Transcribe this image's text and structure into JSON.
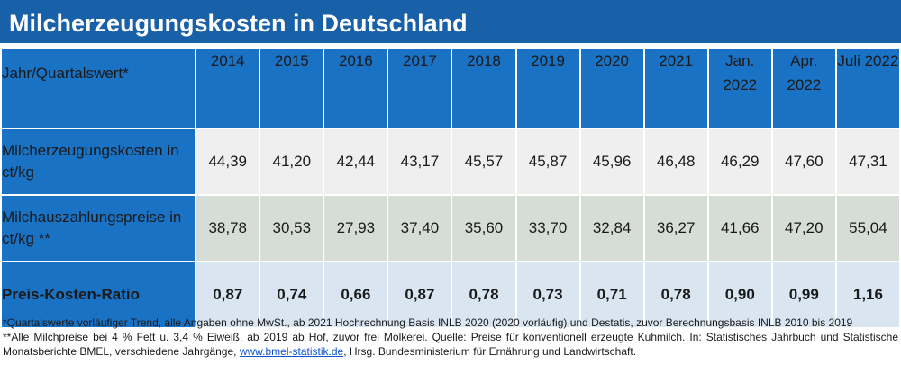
{
  "title": "Milcherzeugungskosten in Deutschland",
  "chart_data": {
    "type": "table",
    "title": "Milcherzeugungskosten in Deutschland",
    "header_label": "Jahr/Quartalswert*",
    "columns": [
      "2014",
      "2015",
      "2016",
      "2017",
      "2018",
      "2019",
      "2020",
      "2021",
      "Jan. 2022",
      "Apr. 2022",
      "Juli 2022"
    ],
    "rows": [
      {
        "label": "Milcherzeugungskosten in ct/kg",
        "values": [
          "44,39",
          "41,20",
          "42,44",
          "43,17",
          "45,57",
          "45,87",
          "45,96",
          "46,48",
          "46,29",
          "47,60",
          "47,31"
        ]
      },
      {
        "label": "Milchauszahlungspreise in ct/kg **",
        "values": [
          "38,78",
          "30,53",
          "27,93",
          "37,40",
          "35,60",
          "33,70",
          "32,84",
          "36,27",
          "41,66",
          "47,20",
          "55,04"
        ]
      },
      {
        "label": "Preis-Kosten-Ratio",
        "values": [
          "0,87",
          "0,74",
          "0,66",
          "0,87",
          "0,78",
          "0,73",
          "0,71",
          "0,78",
          "0,90",
          "0,99",
          "1,16"
        ]
      }
    ]
  },
  "footnotes": {
    "line1": "*Quartalswerte vorläufiger Trend, alle Angaben ohne MwSt., ab 2021 Hochrechnung Basis INLB 2020 (2020 vorläufig) und Destatis, zuvor Berechnungsbasis INLB 2010 bis 2019",
    "line2": "**Alle Milchpreise bei 4 % Fett u. 3,4 % Eiweiß, ab 2019 ab Hof, zuvor frei Molkerei. Quelle: Preise für konventionell erzeugte Kuhmilch. In: Statistisches Jahrbuch und Statistische Monatsberichte BMEL, verschiedene Jahrgänge, ",
    "link": "www.bmel-statistik.de",
    "line2_tail": ", Hrsg. Bundesministerium für Ernährung und Landwirtschaft."
  },
  "colors": {
    "title_bg": "#1860a8",
    "header_bg": "#1a72c4",
    "cost_row_bg": "#efefef",
    "price_row_bg": "#d6dcd6",
    "ratio_row_bg": "#d9e6f2"
  }
}
